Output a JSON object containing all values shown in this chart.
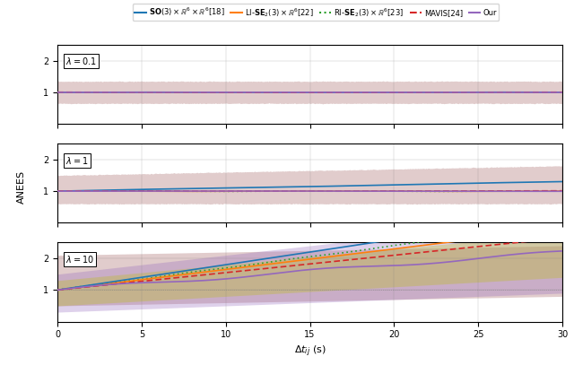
{
  "title": "",
  "xlabel": "$\\Delta t_{ij}$ (s)",
  "ylabel": "ANEES",
  "xlim": [
    0,
    30
  ],
  "ylim": [
    0,
    2.5
  ],
  "lambdas": [
    0.1,
    1,
    10
  ],
  "colors": {
    "SO3": "#1f77b4",
    "LI": "#ff7f0e",
    "RI": "#2ca02c",
    "MAVIS": "#d62728",
    "OUR": "#9467bd"
  },
  "legend_labels": [
    "SO(3)$\\times\\mathbb{R}^6\\times\\mathbb{R}^6$[18]",
    "LI-$\\mathbf{SE}_2(3)\\times\\mathbb{R}^6$[22]",
    "RI-$\\mathbf{SE}_2(3)\\times\\mathbb{R}^6$[23]",
    "MAVIS[24]",
    "Our"
  ]
}
